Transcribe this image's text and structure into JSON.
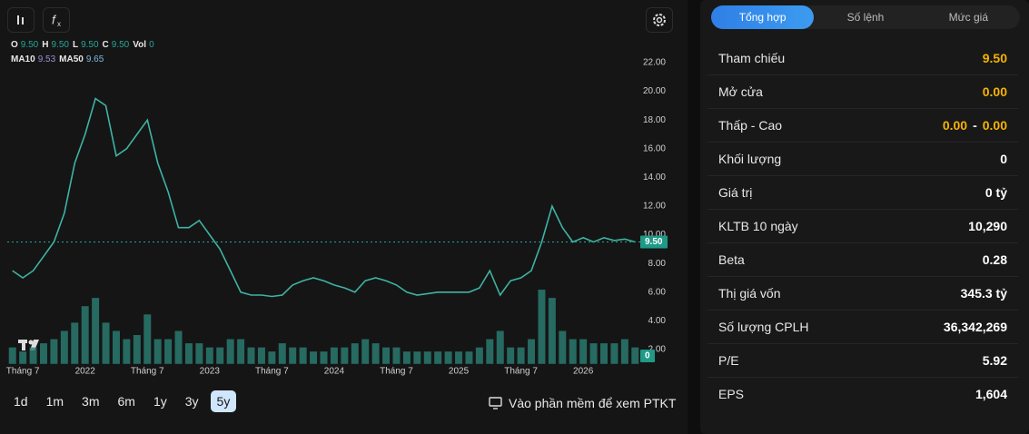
{
  "legend": {
    "ohlc": [
      {
        "label": "O",
        "value": "9.50"
      },
      {
        "label": "H",
        "value": "9.50"
      },
      {
        "label": "L",
        "value": "9.50"
      },
      {
        "label": "C",
        "value": "9.50"
      },
      {
        "label": "Vol",
        "value": "0"
      }
    ],
    "ma": [
      {
        "label": "MA10",
        "value": "9.53",
        "color": "#9c8fd6"
      },
      {
        "label": "MA50",
        "value": "9.65",
        "color": "#7fb8e0"
      }
    ]
  },
  "chart_data": {
    "type": "line",
    "categories": [
      null,
      "Tháng 7",
      null,
      null,
      null,
      null,
      null,
      "2022",
      null,
      null,
      null,
      null,
      null,
      "Tháng 7",
      null,
      null,
      null,
      null,
      null,
      "2023",
      null,
      null,
      null,
      null,
      null,
      "Tháng 7",
      null,
      null,
      null,
      null,
      null,
      "2024",
      null,
      null,
      null,
      null,
      null,
      "Tháng 7",
      null,
      null,
      null,
      null,
      null,
      "2025",
      null,
      null,
      null,
      null,
      null,
      "Tháng 7",
      null,
      null,
      null,
      null,
      null,
      "2026",
      null,
      null,
      null,
      null,
      null
    ],
    "series": [
      {
        "color": "#3fb3a4",
        "values": [
          7.5,
          7.0,
          7.5,
          8.5,
          9.5,
          11.5,
          15.0,
          17.0,
          19.5,
          19.0,
          15.5,
          16.0,
          17.0,
          18.0,
          15.0,
          13.0,
          10.5,
          10.5,
          11.0,
          10.0,
          9.0,
          7.5,
          6.0,
          5.8,
          5.8,
          5.7,
          5.8,
          6.5,
          6.8,
          7.0,
          6.8,
          6.5,
          6.3,
          6.0,
          6.8,
          7.0,
          6.8,
          6.5,
          6.0,
          5.8,
          5.9,
          6.0,
          6.0,
          6.0,
          6.0,
          6.3,
          7.5,
          5.8,
          6.8,
          7.0,
          7.5,
          9.5,
          12.0,
          10.5,
          9.5,
          9.8,
          9.5,
          9.8,
          9.6,
          9.7,
          9.5
        ]
      },
      {
        "type": "bar",
        "axis": "y2",
        "color": "#2a7f74",
        "values": [
          2,
          1.5,
          2,
          2.5,
          3,
          4,
          5,
          7,
          8,
          5,
          4,
          3,
          3.5,
          6,
          3,
          3,
          4,
          2.5,
          2.5,
          2,
          2,
          3,
          3,
          2,
          2,
          1.5,
          2.5,
          2,
          2,
          1.5,
          1.5,
          2,
          2,
          2.5,
          3,
          2.5,
          2,
          2,
          1.5,
          1.5,
          1.5,
          1.5,
          1.5,
          1.5,
          1.5,
          2,
          3,
          4,
          2,
          2,
          3,
          9,
          8,
          4,
          3,
          3,
          2.5,
          2.5,
          2.5,
          3,
          2
        ]
      }
    ],
    "ylim": [
      1,
      24
    ],
    "yticks": [
      {
        "value": 2,
        "label": "2.00"
      },
      {
        "value": 4,
        "label": "4.00"
      },
      {
        "value": 6,
        "label": "6.00"
      },
      {
        "value": 8,
        "label": "8.00"
      },
      {
        "value": 10,
        "label": "10.00"
      },
      {
        "value": 12,
        "label": "12.00"
      },
      {
        "value": 14,
        "label": "14.00"
      },
      {
        "value": 16,
        "label": "16.00"
      },
      {
        "value": 18,
        "label": "18.00"
      },
      {
        "value": 20,
        "label": "20.00"
      },
      {
        "value": 22,
        "label": "22.00"
      }
    ],
    "y2lim": [
      0,
      40
    ],
    "grid": false,
    "last_price": {
      "value": 9.5,
      "label": "9.50"
    },
    "last_volume": 0
  },
  "ranges": {
    "options": [
      "1d",
      "1m",
      "3m",
      "6m",
      "1y",
      "3y",
      "5y"
    ],
    "active": "5y"
  },
  "link": "Vào phần mềm để xem PTKT",
  "summary": {
    "tabs": [
      "Tổng hợp",
      "Số lệnh",
      "Mức giá"
    ],
    "active_tab": "Tổng hợp",
    "rows": [
      {
        "label": "Tham chiếu",
        "value": "9.50",
        "color": "#f5b400"
      },
      {
        "label": "Mở cửa",
        "value": "0.00",
        "color": "#f5b400"
      },
      {
        "label": "Thấp - Cao",
        "value": [
          "0.00",
          "-",
          "0.00"
        ],
        "color": "#f5b400"
      },
      {
        "label": "Khối lượng",
        "value": "0",
        "color": "#ffffff"
      },
      {
        "label": "Giá trị",
        "value": "0 tỷ",
        "color": "#ffffff"
      },
      {
        "label": "KLTB 10 ngày",
        "value": "10,290",
        "color": "#ffffff"
      },
      {
        "label": "Beta",
        "value": "0.28",
        "color": "#ffffff"
      },
      {
        "label": "Thị giá vốn",
        "value": "345.3 tỷ",
        "color": "#ffffff"
      },
      {
        "label": "Số lượng CPLH",
        "value": "36,342,269",
        "color": "#ffffff"
      },
      {
        "label": "P/E",
        "value": "5.92",
        "color": "#ffffff"
      },
      {
        "label": "EPS",
        "value": "1,604",
        "color": "#ffffff"
      }
    ]
  }
}
